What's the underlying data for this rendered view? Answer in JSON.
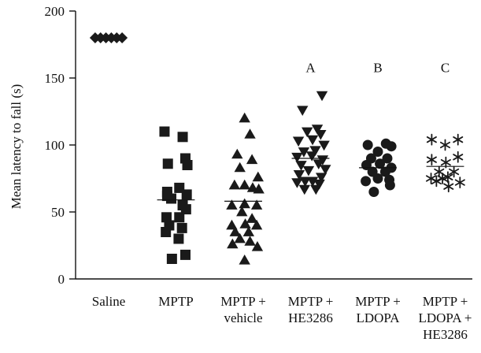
{
  "chart_data": {
    "type": "scatter",
    "title": "",
    "xlabel": "",
    "ylabel": "Mean latency to fall (s)",
    "ylim": [
      0,
      200
    ],
    "yticks": [
      0,
      50,
      100,
      150,
      200
    ],
    "grid": false,
    "marker_color": "#1a1a1a",
    "categories": [
      {
        "lines": [
          "Saline"
        ]
      },
      {
        "lines": [
          "MPTP"
        ]
      },
      {
        "lines": [
          "MPTP +",
          "vehicle"
        ]
      },
      {
        "lines": [
          "MPTP +",
          "HE3286"
        ]
      },
      {
        "lines": [
          "MPTP +",
          "LDOPA"
        ]
      },
      {
        "lines": [
          "MPTP +",
          "LDOPA +",
          "HE3286"
        ]
      }
    ],
    "series": [
      {
        "marker": "diamond",
        "label": "",
        "mean": 180,
        "points": [
          [
            -0.2,
            180
          ],
          [
            -0.12,
            180
          ],
          [
            -0.04,
            180
          ],
          [
            0.04,
            180
          ],
          [
            0.12,
            180
          ],
          [
            0.2,
            180
          ]
        ]
      },
      {
        "marker": "square",
        "label": "",
        "mean": 59,
        "points": [
          [
            -0.17,
            110
          ],
          [
            0.1,
            106
          ],
          [
            -0.12,
            86
          ],
          [
            0.14,
            90
          ],
          [
            0.17,
            85
          ],
          [
            -0.13,
            65
          ],
          [
            -0.13,
            62
          ],
          [
            0.05,
            68
          ],
          [
            0.16,
            63
          ],
          [
            -0.07,
            60
          ],
          [
            0.1,
            55
          ],
          [
            0.15,
            52
          ],
          [
            -0.14,
            46
          ],
          [
            0.05,
            46
          ],
          [
            -0.1,
            40
          ],
          [
            0.09,
            38
          ],
          [
            -0.15,
            35
          ],
          [
            0.04,
            30
          ],
          [
            0.14,
            18
          ],
          [
            -0.06,
            15
          ]
        ]
      },
      {
        "marker": "triangle-up",
        "label": "",
        "mean": 58,
        "points": [
          [
            0.02,
            120
          ],
          [
            0.1,
            108
          ],
          [
            -0.09,
            93
          ],
          [
            0.13,
            89
          ],
          [
            -0.05,
            83
          ],
          [
            0.22,
            76
          ],
          [
            -0.13,
            70
          ],
          [
            0.02,
            70
          ],
          [
            0.14,
            68
          ],
          [
            0.23,
            67
          ],
          [
            -0.17,
            55
          ],
          [
            0.02,
            56
          ],
          [
            0.2,
            55
          ],
          [
            -0.02,
            50
          ],
          [
            0.13,
            45
          ],
          [
            -0.17,
            40
          ],
          [
            0.03,
            41
          ],
          [
            0.2,
            40
          ],
          [
            -0.12,
            35
          ],
          [
            0.08,
            35
          ],
          [
            -0.05,
            30
          ],
          [
            0.1,
            28
          ],
          [
            -0.16,
            26
          ],
          [
            0.21,
            24
          ],
          [
            0.02,
            14
          ]
        ]
      },
      {
        "marker": "triangle-down",
        "label": "",
        "mean": 90,
        "points": [
          [
            0.17,
            137
          ],
          [
            -0.12,
            126
          ],
          [
            -0.05,
            110
          ],
          [
            0.1,
            112
          ],
          [
            0.15,
            108
          ],
          [
            -0.18,
            103
          ],
          [
            0.03,
            104
          ],
          [
            0.2,
            100
          ],
          [
            -0.1,
            95
          ],
          [
            0.07,
            96
          ],
          [
            -0.2,
            91
          ],
          [
            0.02,
            92
          ],
          [
            0.18,
            89
          ],
          [
            -0.14,
            85
          ],
          [
            0.12,
            86
          ],
          [
            0.22,
            82
          ],
          [
            -0.03,
            81
          ],
          [
            -0.17,
            78
          ],
          [
            0.16,
            76
          ],
          [
            -0.08,
            73
          ],
          [
            0.03,
            73
          ],
          [
            -0.2,
            72
          ],
          [
            0.13,
            71
          ],
          [
            -0.09,
            67
          ],
          [
            0.08,
            67
          ]
        ]
      },
      {
        "marker": "circle",
        "label": "",
        "mean": 83,
        "points": [
          [
            -0.15,
            100
          ],
          [
            0.12,
            101
          ],
          [
            0.2,
            99
          ],
          [
            0.0,
            95
          ],
          [
            -0.1,
            90
          ],
          [
            0.14,
            90
          ],
          [
            -0.17,
            85
          ],
          [
            0.03,
            86
          ],
          [
            0.2,
            83
          ],
          [
            -0.08,
            80
          ],
          [
            0.11,
            80
          ],
          [
            -0.18,
            73
          ],
          [
            0.0,
            75
          ],
          [
            0.17,
            74
          ],
          [
            0.18,
            70
          ],
          [
            -0.06,
            65
          ]
        ]
      },
      {
        "marker": "asterisk",
        "label": "",
        "mean": 84,
        "points": [
          [
            -0.2,
            104
          ],
          [
            0.19,
            104
          ],
          [
            0.0,
            100
          ],
          [
            0.19,
            91
          ],
          [
            -0.2,
            89
          ],
          [
            0.01,
            87
          ],
          [
            -0.09,
            80
          ],
          [
            0.13,
            80
          ],
          [
            -0.21,
            75
          ],
          [
            -0.04,
            75
          ],
          [
            0.04,
            76
          ],
          [
            0.22,
            72
          ],
          [
            -0.13,
            73
          ],
          [
            0.05,
            69
          ]
        ]
      }
    ],
    "annotations": [
      {
        "category_index": 3,
        "text": "A",
        "y": 158
      },
      {
        "category_index": 4,
        "text": "B",
        "y": 158
      },
      {
        "category_index": 5,
        "text": "C",
        "y": 158
      }
    ]
  }
}
